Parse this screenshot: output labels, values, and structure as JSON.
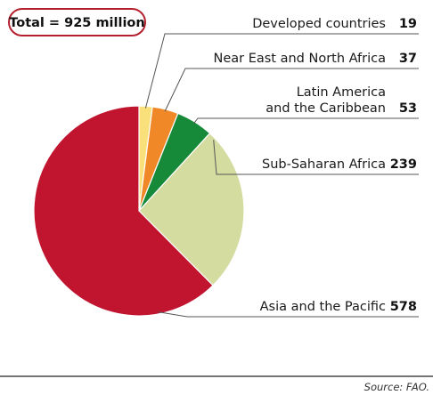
{
  "chart_data": {
    "type": "pie",
    "total_label": "Total = 925 million",
    "slices": [
      {
        "label": "Developed countries",
        "label_lines": [
          "Developed countries"
        ],
        "value": 19,
        "color": "#F9E07A"
      },
      {
        "label": "Near East and North Africa",
        "label_lines": [
          "Near East and North Africa"
        ],
        "value": 37,
        "color": "#F08828"
      },
      {
        "label": "Latin America and the Caribbean",
        "label_lines": [
          "Latin America",
          "and the Caribbean"
        ],
        "value": 53,
        "color": "#178A3A"
      },
      {
        "label": "Sub-Saharan Africa",
        "label_lines": [
          "Sub-Saharan Africa"
        ],
        "value": 239,
        "color": "#D5DCA0"
      },
      {
        "label": "Asia and the Pacific",
        "label_lines": [
          "Asia and the Pacific"
        ],
        "value": 578,
        "color": "#C0142F"
      }
    ],
    "source": "Source: FAO.",
    "colors": {
      "total_border": "#B5202E",
      "leader_line": "#555555",
      "bottom_rule": "#222222"
    }
  }
}
